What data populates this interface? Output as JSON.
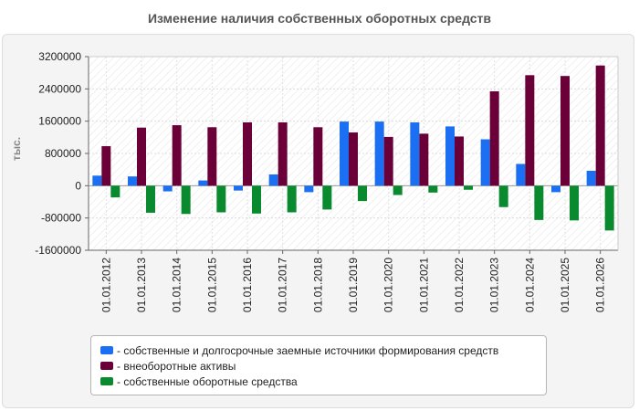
{
  "chart_title": "Изменение наличия собственных оборотных средств",
  "chart_data": {
    "type": "bar",
    "title": "Изменение наличия собственных оборотных средств",
    "xlabel": "",
    "ylabel": "тыс.",
    "ylim": [
      -1600000,
      3200000
    ],
    "yticks": [
      3200000,
      2400000,
      1600000,
      800000,
      0,
      -800000,
      -1600000
    ],
    "ytick_labels": [
      "3200000",
      "2400000",
      "1600000",
      "800000",
      "0",
      "-800000",
      "-1600000"
    ],
    "grid": true,
    "legend_position": "bottom",
    "categories": [
      "01.01.2012",
      "01.01.2013",
      "01.01.2014",
      "01.01.2015",
      "01.01.2016",
      "01.01.2017",
      "01.01.2018",
      "01.01.2019",
      "01.01.2020",
      "01.01.2021",
      "01.01.2022",
      "01.01.2023",
      "01.01.2024",
      "01.01.2025",
      "01.01.2026"
    ],
    "series": [
      {
        "name": "- собственные и долгосрочные заемные источники формирования средств",
        "color": "#1a6ff2",
        "values": [
          250000,
          230000,
          -140000,
          130000,
          -120000,
          280000,
          -160000,
          1590000,
          1590000,
          1570000,
          1470000,
          1150000,
          540000,
          -160000,
          370000
        ]
      },
      {
        "name": "- внеоборотные активы",
        "color": "#6b0038",
        "values": [
          980000,
          1440000,
          1500000,
          1450000,
          1570000,
          1570000,
          1450000,
          1320000,
          1210000,
          1290000,
          1220000,
          2340000,
          2740000,
          2720000,
          2980000
        ]
      },
      {
        "name": "- собственные оборотные средства",
        "color": "#0a8a2e",
        "values": [
          -290000,
          -670000,
          -700000,
          -660000,
          -690000,
          -660000,
          -590000,
          -380000,
          -230000,
          -170000,
          -100000,
          -530000,
          -850000,
          -860000,
          -1110000
        ]
      }
    ]
  }
}
